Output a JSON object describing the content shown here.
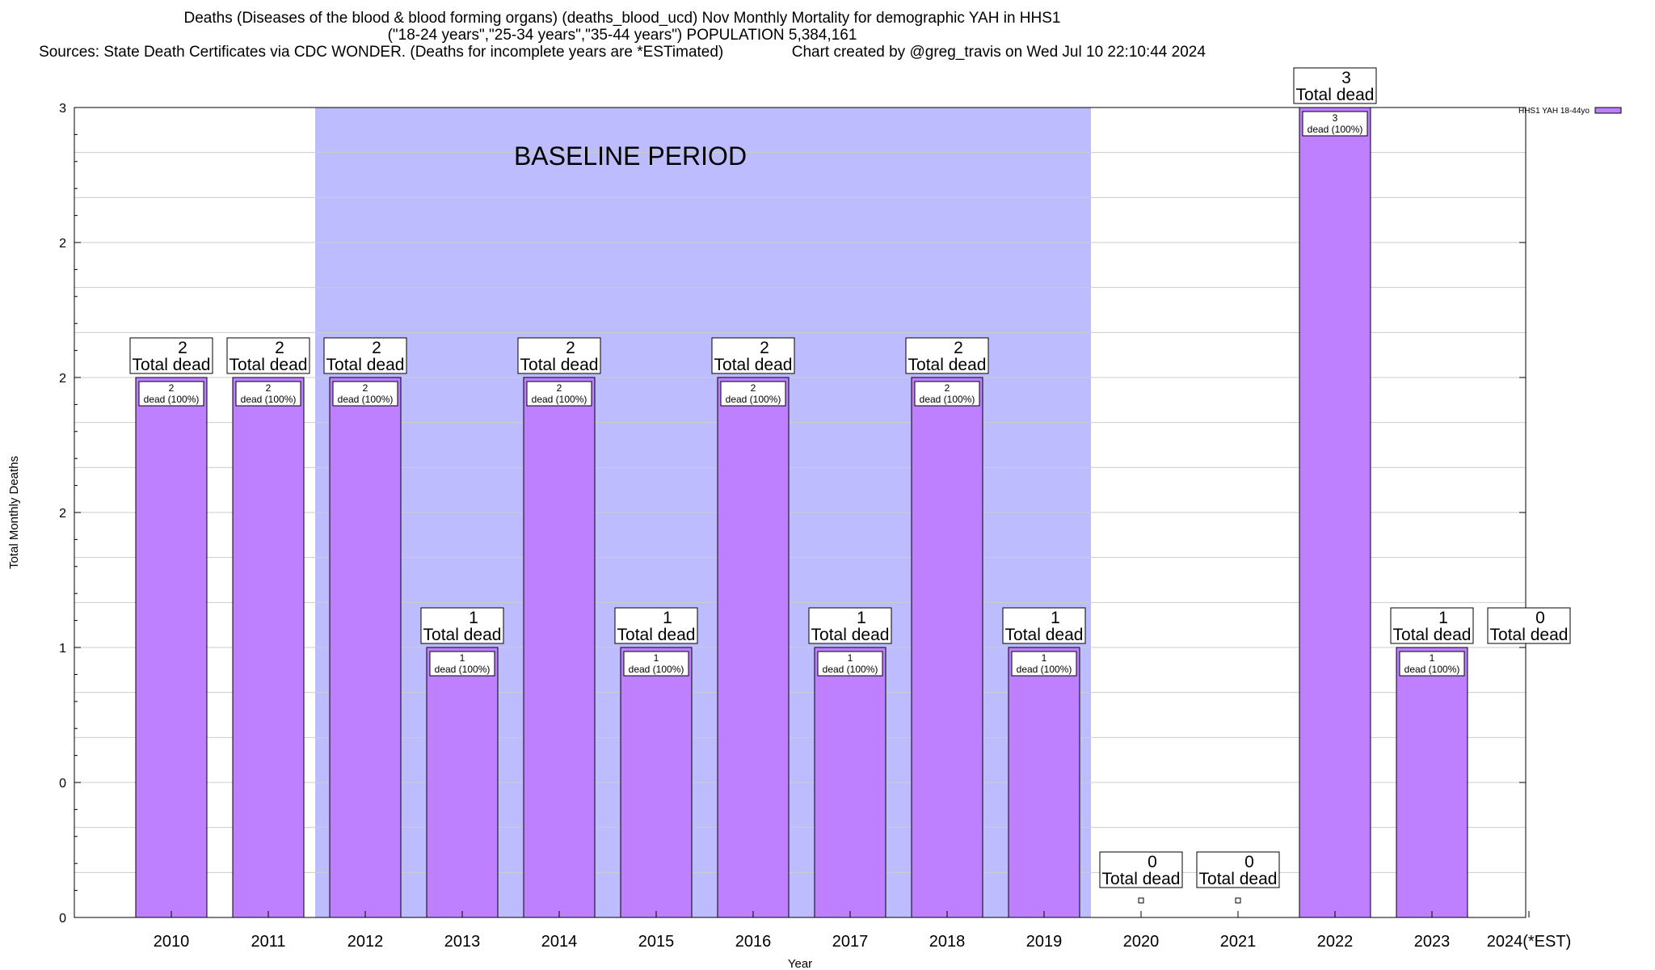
{
  "title": {
    "line1": "Deaths (Diseases of the blood & blood forming organs) (deaths_blood_ucd) Nov Monthly Mortality for demographic YAH in HHS1",
    "line2": "(\"18-24 years\",\"25-34 years\",\"35-44 years\") POPULATION 5,384,161",
    "line3": "Sources: State Death Certificates via CDC WONDER. (Deaths for incomplete years are *ESTimated)                Chart created by @greg_travis on Wed Jul 10 22:10:44 2024"
  },
  "chart_data": {
    "type": "bar",
    "xlabel": "Year",
    "ylabel": "Total Monthly Deaths",
    "ylim": [
      0,
      3
    ],
    "y_tick_labels": [
      "0",
      "0",
      "1",
      "2",
      "2",
      "2",
      "3"
    ],
    "y_tick_values": [
      0,
      0.5,
      1,
      1.5,
      2,
      2.5,
      3
    ],
    "grid": true,
    "legend_position": "top-right",
    "bar_color": "#bf80ff",
    "baseline_color": "#bcbcff",
    "baseline_label": "BASELINE PERIOD",
    "baseline_range": [
      "2012",
      "2019"
    ],
    "categories": [
      "2010",
      "2011",
      "2012",
      "2013",
      "2014",
      "2015",
      "2016",
      "2017",
      "2018",
      "2019",
      "2020",
      "2021",
      "2022",
      "2023",
      "2024(*EST)"
    ],
    "series": [
      {
        "name": "HHS1 YAH 18-44yo",
        "values": [
          2,
          2,
          2,
          1,
          2,
          1,
          2,
          1,
          2,
          1,
          0,
          0,
          3,
          1,
          0
        ]
      }
    ],
    "total_labels": [
      "2",
      "2",
      "2",
      "1",
      "2",
      "1",
      "2",
      "1",
      "2",
      "1",
      "0",
      "0",
      "3",
      "1",
      "0"
    ],
    "total_suffix": "Total dead",
    "inner_suffix": "dead (100%)"
  }
}
